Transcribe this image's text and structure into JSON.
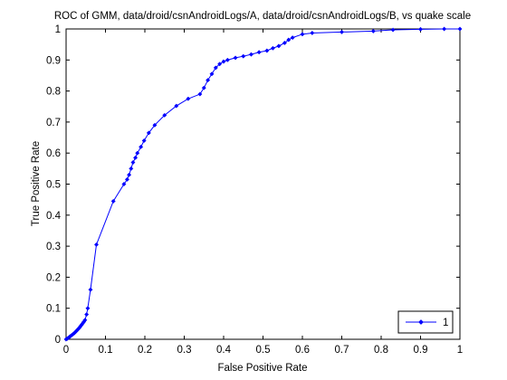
{
  "chart_data": {
    "type": "line",
    "title": "ROC of GMM, data/droid/csnAndroidLogs/A, data/droid/csnAndroidLogs/B, vs quake scale",
    "xlabel": "False Positive Rate",
    "ylabel": "True Positive Rate",
    "xlim": [
      0,
      1
    ],
    "ylim": [
      0,
      1
    ],
    "xticks": [
      "0",
      "0.1",
      "0.2",
      "0.3",
      "0.4",
      "0.5",
      "0.6",
      "0.7",
      "0.8",
      "0.9",
      "1"
    ],
    "yticks": [
      "0",
      "0.1",
      "0.2",
      "0.3",
      "0.4",
      "0.5",
      "0.6",
      "0.7",
      "0.8",
      "0.9",
      "1"
    ],
    "grid": false,
    "legend": {
      "placement": "bottom-right",
      "entries": [
        "1"
      ]
    },
    "series_color": "#0000ff",
    "series": [
      {
        "name": "1",
        "points": [
          [
            0.0,
            0.0
          ],
          [
            0.003,
            0.002
          ],
          [
            0.006,
            0.005
          ],
          [
            0.009,
            0.008
          ],
          [
            0.012,
            0.011
          ],
          [
            0.015,
            0.014
          ],
          [
            0.018,
            0.017
          ],
          [
            0.021,
            0.02
          ],
          [
            0.024,
            0.024
          ],
          [
            0.027,
            0.028
          ],
          [
            0.03,
            0.032
          ],
          [
            0.033,
            0.036
          ],
          [
            0.036,
            0.041
          ],
          [
            0.039,
            0.046
          ],
          [
            0.042,
            0.051
          ],
          [
            0.045,
            0.056
          ],
          [
            0.048,
            0.062
          ],
          [
            0.052,
            0.08
          ],
          [
            0.055,
            0.1
          ],
          [
            0.062,
            0.16
          ],
          [
            0.077,
            0.305
          ],
          [
            0.12,
            0.445
          ],
          [
            0.147,
            0.5
          ],
          [
            0.155,
            0.515
          ],
          [
            0.16,
            0.53
          ],
          [
            0.165,
            0.55
          ],
          [
            0.17,
            0.57
          ],
          [
            0.176,
            0.585
          ],
          [
            0.181,
            0.6
          ],
          [
            0.19,
            0.62
          ],
          [
            0.198,
            0.64
          ],
          [
            0.21,
            0.665
          ],
          [
            0.225,
            0.69
          ],
          [
            0.25,
            0.722
          ],
          [
            0.28,
            0.752
          ],
          [
            0.31,
            0.775
          ],
          [
            0.34,
            0.79
          ],
          [
            0.35,
            0.81
          ],
          [
            0.36,
            0.835
          ],
          [
            0.37,
            0.855
          ],
          [
            0.38,
            0.875
          ],
          [
            0.39,
            0.887
          ],
          [
            0.4,
            0.895
          ],
          [
            0.41,
            0.9
          ],
          [
            0.43,
            0.907
          ],
          [
            0.45,
            0.912
          ],
          [
            0.47,
            0.918
          ],
          [
            0.49,
            0.925
          ],
          [
            0.51,
            0.93
          ],
          [
            0.525,
            0.938
          ],
          [
            0.54,
            0.945
          ],
          [
            0.555,
            0.955
          ],
          [
            0.565,
            0.965
          ],
          [
            0.575,
            0.972
          ],
          [
            0.6,
            0.983
          ],
          [
            0.625,
            0.987
          ],
          [
            0.7,
            0.99
          ],
          [
            0.78,
            0.993
          ],
          [
            0.83,
            0.997
          ],
          [
            0.9,
            0.999
          ],
          [
            0.96,
            1.0
          ],
          [
            1.0,
            1.0
          ]
        ]
      }
    ]
  }
}
